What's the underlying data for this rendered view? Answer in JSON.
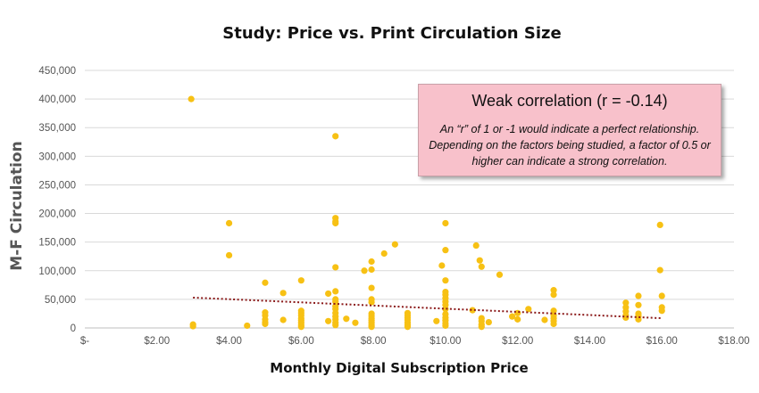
{
  "chart_data": {
    "type": "scatter",
    "title": "Study: Price vs. Print Circulation Size",
    "xlabel": "Monthly Digital Subscription Price",
    "ylabel": "M-F Circulation",
    "xlim": [
      0,
      18
    ],
    "ylim": [
      0,
      450000
    ],
    "x_ticks": [
      0,
      2,
      4,
      6,
      8,
      10,
      12,
      14,
      16,
      18
    ],
    "x_tick_labels": [
      "$-",
      "$2.00",
      "$4.00",
      "$6.00",
      "$8.00",
      "$10.00",
      "$12.00",
      "$14.00",
      "$16.00",
      "$18.00"
    ],
    "y_ticks": [
      0,
      50000,
      100000,
      150000,
      200000,
      250000,
      300000,
      350000,
      400000,
      450000
    ],
    "y_tick_labels": [
      "0",
      "50,000",
      "100,000",
      "150,000",
      "200,000",
      "250,000",
      "300,000",
      "350,000",
      "400,000",
      "450,000"
    ],
    "grid": "horizontal",
    "points": [
      [
        2.95,
        400000
      ],
      [
        3.0,
        6000
      ],
      [
        3.0,
        3000
      ],
      [
        4.0,
        183000
      ],
      [
        4.0,
        127000
      ],
      [
        4.5,
        4000
      ],
      [
        5.0,
        79000
      ],
      [
        5.0,
        27000
      ],
      [
        5.0,
        22000
      ],
      [
        5.0,
        15000
      ],
      [
        5.0,
        10000
      ],
      [
        5.0,
        7000
      ],
      [
        5.5,
        61000
      ],
      [
        5.5,
        14000
      ],
      [
        6.0,
        83000
      ],
      [
        6.0,
        30000
      ],
      [
        6.0,
        26000
      ],
      [
        6.0,
        22000
      ],
      [
        6.0,
        17000
      ],
      [
        6.0,
        13000
      ],
      [
        6.0,
        9000
      ],
      [
        6.0,
        5000
      ],
      [
        6.0,
        2000
      ],
      [
        6.75,
        60000
      ],
      [
        6.75,
        12000
      ],
      [
        6.95,
        335000
      ],
      [
        6.95,
        192000
      ],
      [
        6.95,
        186000
      ],
      [
        6.95,
        183000
      ],
      [
        6.95,
        106000
      ],
      [
        6.95,
        64000
      ],
      [
        6.95,
        50000
      ],
      [
        6.95,
        46000
      ],
      [
        6.95,
        38000
      ],
      [
        6.95,
        33000
      ],
      [
        6.95,
        26000
      ],
      [
        6.95,
        20000
      ],
      [
        6.95,
        15000
      ],
      [
        6.95,
        9000
      ],
      [
        6.95,
        5000
      ],
      [
        7.25,
        16000
      ],
      [
        7.5,
        9000
      ],
      [
        7.75,
        100000
      ],
      [
        7.95,
        116000
      ],
      [
        7.95,
        102000
      ],
      [
        7.95,
        70000
      ],
      [
        7.95,
        50000
      ],
      [
        7.95,
        45000
      ],
      [
        7.95,
        25000
      ],
      [
        7.95,
        21000
      ],
      [
        7.95,
        17000
      ],
      [
        7.95,
        13000
      ],
      [
        7.95,
        9000
      ],
      [
        7.95,
        5000
      ],
      [
        7.95,
        2000
      ],
      [
        8.3,
        130000
      ],
      [
        8.6,
        146000
      ],
      [
        8.95,
        26000
      ],
      [
        8.95,
        22000
      ],
      [
        8.95,
        18000
      ],
      [
        8.95,
        14000
      ],
      [
        8.95,
        9000
      ],
      [
        8.95,
        5000
      ],
      [
        8.95,
        2000
      ],
      [
        9.75,
        12000
      ],
      [
        9.9,
        109000
      ],
      [
        10.0,
        183000
      ],
      [
        10.0,
        136000
      ],
      [
        10.0,
        83000
      ],
      [
        10.0,
        63000
      ],
      [
        10.0,
        58000
      ],
      [
        10.0,
        52000
      ],
      [
        10.0,
        46000
      ],
      [
        10.0,
        40000
      ],
      [
        10.0,
        33000
      ],
      [
        10.0,
        24000
      ],
      [
        10.0,
        18000
      ],
      [
        10.0,
        13000
      ],
      [
        10.0,
        8000
      ],
      [
        10.0,
        4000
      ],
      [
        10.75,
        31000
      ],
      [
        10.85,
        144000
      ],
      [
        10.95,
        118000
      ],
      [
        11.0,
        107000
      ],
      [
        11.0,
        17000
      ],
      [
        11.0,
        12000
      ],
      [
        11.0,
        6000
      ],
      [
        11.0,
        2000
      ],
      [
        11.2,
        10000
      ],
      [
        11.5,
        93000
      ],
      [
        11.85,
        20000
      ],
      [
        12.0,
        26000
      ],
      [
        12.0,
        15000
      ],
      [
        12.3,
        33000
      ],
      [
        12.75,
        14000
      ],
      [
        13.0,
        66000
      ],
      [
        13.0,
        58000
      ],
      [
        13.0,
        30000
      ],
      [
        13.0,
        22000
      ],
      [
        13.0,
        17000
      ],
      [
        13.0,
        12000
      ],
      [
        13.0,
        7000
      ],
      [
        15.0,
        44000
      ],
      [
        15.0,
        36000
      ],
      [
        15.0,
        29000
      ],
      [
        15.0,
        22000
      ],
      [
        15.0,
        18000
      ],
      [
        15.35,
        56000
      ],
      [
        15.35,
        40000
      ],
      [
        15.35,
        25000
      ],
      [
        15.35,
        21000
      ],
      [
        15.35,
        15000
      ],
      [
        15.95,
        180000
      ],
      [
        15.95,
        101000
      ],
      [
        16.0,
        56000
      ],
      [
        16.0,
        36000
      ],
      [
        16.0,
        30000
      ]
    ],
    "trendline": {
      "x": [
        3.0,
        16.0
      ],
      "y": [
        53000,
        17000
      ],
      "style": "dotted"
    },
    "annotation": {
      "title": "Weak correlation (r = -0.14)",
      "text": "An “r” of 1 or -1 would indicate a perfect relationship. Depending on the factors being studied, a factor of 0.5 or higher can indicate a strong correlation."
    },
    "colors": {
      "points": "#f7c114",
      "trendline": "#8b1a1a",
      "callout_bg": "#f8c1cb"
    }
  }
}
